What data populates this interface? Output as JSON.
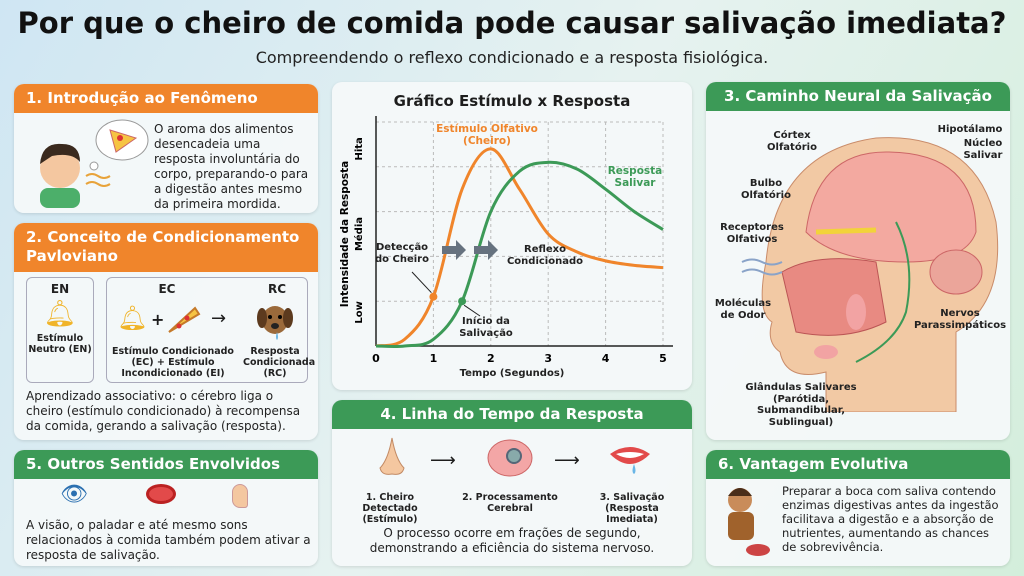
{
  "title": "Por que o cheiro de comida pode causar salivação imediata?",
  "subtitle": "Compreendendo o reflexo condicionado e a resposta fisiológica.",
  "colors": {
    "orange": "#f0852b",
    "green": "#3c9a57"
  },
  "panel1": {
    "header": "1. Introdução ao Fenômeno",
    "text": "O aroma dos alimentos desencadeia uma resposta involuntária do corpo, preparando-o para a digestão antes mesmo da primeira mordida.",
    "icon": "boy-smelling-pizza"
  },
  "panel2": {
    "header": "2. Conceito de Condicionamento Pavloviano",
    "en": {
      "title": "EN",
      "label": "Estímulo Neutro (EN)",
      "icon": "bell-ringing-icon"
    },
    "ec": {
      "title": "EC",
      "label": "Estímulo Condicionado (EC) + Estímulo Incondicionado (EI)",
      "plus": "+",
      "arrow": "→"
    },
    "rc": {
      "title": "RC",
      "label": "Resposta Condicionada (RC)",
      "icon": "drooling-dog-icon"
    },
    "text": "Aprendizado associativo: o cérebro liga o cheiro (estímulo condicionado) à recompensa da comida, gerando a salivação (resposta)."
  },
  "panel5": {
    "header": "5. Outros Sentidos Envolvidos",
    "text": "A visão, o paladar e até mesmo sons relacionados à comida também podem ativar a resposta de salivação.",
    "icons": [
      "eye-icon",
      "tongue-icon",
      "ear-icon"
    ]
  },
  "chart_data": {
    "type": "line",
    "title": "Gráfico Estímulo x Resposta",
    "xlabel": "Tempo (Segundos)",
    "ylabel": "Intensidade da Resposta",
    "xlim": [
      0,
      5
    ],
    "xticks": [
      "0",
      "1",
      "2",
      "3",
      "4",
      "5"
    ],
    "ylim": [
      0,
      1
    ],
    "yticklabels": [
      "Low",
      "Média",
      "Hita"
    ],
    "grid": true,
    "x": [
      0,
      0.5,
      1,
      1.5,
      2,
      2.5,
      3,
      3.5,
      4,
      4.5,
      5
    ],
    "series": [
      {
        "name": "Estímulo Olfativo (Cheiro)",
        "color": "#f0852b",
        "values": [
          0,
          0.03,
          0.22,
          0.7,
          0.88,
          0.7,
          0.5,
          0.42,
          0.38,
          0.36,
          0.35
        ]
      },
      {
        "name": "Resposta Salivar",
        "color": "#3c9a57",
        "values": [
          0,
          0,
          0.03,
          0.2,
          0.6,
          0.78,
          0.82,
          0.79,
          0.7,
          0.6,
          0.52
        ]
      }
    ],
    "annotations": [
      {
        "text": "Detecção do Cheiro",
        "x": 1
      },
      {
        "text": "Início da Salivação",
        "x": 1.5
      },
      {
        "text": "Reflexo Condicionado"
      }
    ],
    "legend_orange_line1": "Estímulo Olfativo",
    "legend_orange_line2": "(Cheiro)",
    "legend_green_line1": "Resposta",
    "legend_green_line2": "Salivar",
    "ann_det1": "Detecção",
    "ann_det2": "do Cheiro",
    "ann_ini1": "Início da",
    "ann_ini2": "Salivação",
    "ann_ref1": "Reflexo",
    "ann_ref2": "Condicionado"
  },
  "panel3": {
    "header": "3. Caminho Neural da Salivação",
    "labels": {
      "cortex": "Córtex Olfatório",
      "hipo": "Hipotálamo",
      "nucleo": "Núcleo Salivar",
      "bulbo": "Bulbo Olfatório",
      "receptores": "Receptores Olfativos",
      "moleculas": "Moléculas de Odor",
      "nervos": "Nervos Parassimpáticos",
      "glandulas": "Glândulas Salivares (Parótida, Submandibular, Sublingual)"
    }
  },
  "panel4": {
    "header": "4. Linha do Tempo da Resposta",
    "steps": [
      {
        "label": "1. Cheiro Detectado (Estímulo)",
        "icon": "nose-icon"
      },
      {
        "label": "2. Processamento Cerebral",
        "icon": "brain-gears-icon"
      },
      {
        "label": "3. Salivação (Resposta Imediata)",
        "icon": "drooling-mouth-icon"
      }
    ],
    "arrow": "⟶",
    "text": "O processo ocorre em frações de segundo, demonstrando a eficiência do sistema nervoso."
  },
  "panel6": {
    "header": "6. Vantagem Evolutiva",
    "text": "Preparar a boca com saliva contendo enzimas digestivas antes da ingestão facilitava a digestão e a absorção de nutrientes, aumentando as chances de sobrevivência.",
    "icon": "caveman-eating-icon"
  }
}
